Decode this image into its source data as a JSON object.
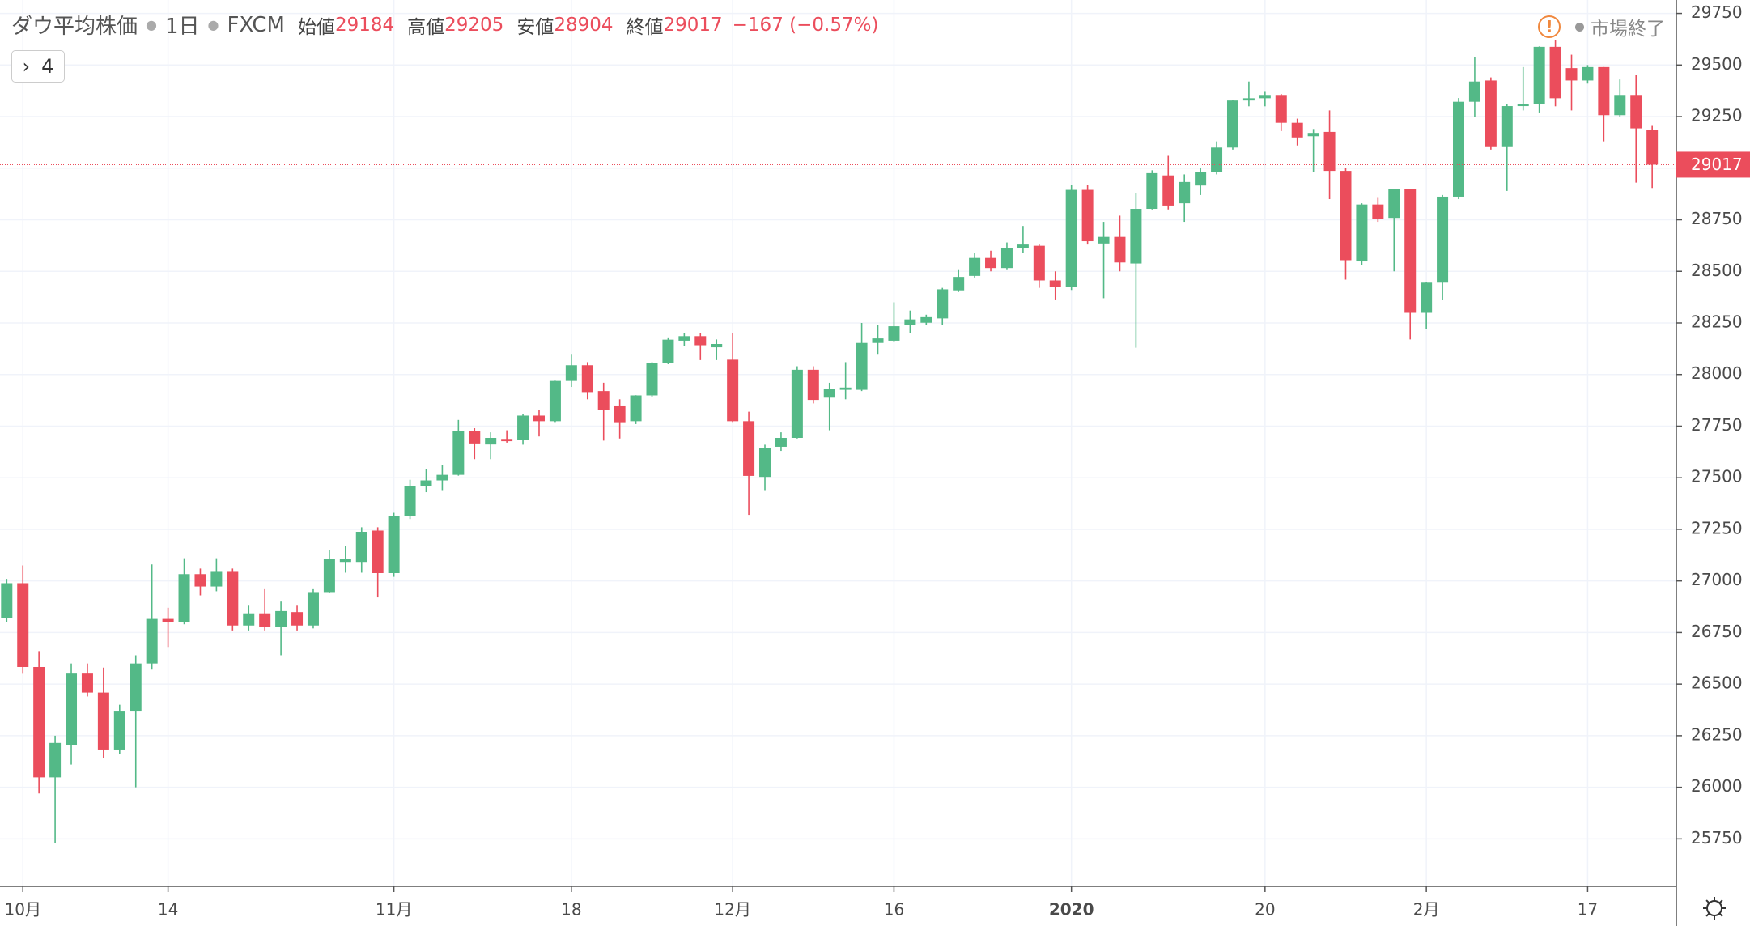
{
  "header": {
    "title": "ダウ平均株価",
    "interval": "1日",
    "source": "FXCM",
    "open_label": "始値",
    "high_label": "高値",
    "low_label": "安値",
    "close_label": "終値",
    "change": "−167 (−0.57%)",
    "collapse_count": "4",
    "market_status": "市場終了"
  },
  "chart_data": {
    "type": "candlestick",
    "up_color": "#53b987",
    "down_color": "#eb4d5c",
    "grid": true,
    "ylim": [
      25520,
      29815
    ],
    "yticks": [
      25750,
      26000,
      26250,
      26500,
      26750,
      27000,
      27250,
      27500,
      27750,
      28000,
      28250,
      28500,
      28750,
      29000,
      29250,
      29500,
      29750
    ],
    "categories": [
      null,
      "10月",
      null,
      null,
      null,
      null,
      null,
      null,
      null,
      null,
      "14",
      null,
      null,
      null,
      null,
      null,
      null,
      null,
      null,
      null,
      null,
      null,
      null,
      null,
      "11月",
      null,
      null,
      null,
      null,
      null,
      null,
      null,
      null,
      null,
      null,
      "18",
      null,
      null,
      null,
      null,
      null,
      null,
      null,
      null,
      null,
      "12月",
      null,
      null,
      null,
      null,
      null,
      null,
      null,
      null,
      null,
      "16",
      null,
      null,
      null,
      null,
      null,
      null,
      null,
      null,
      null,
      null,
      "2020",
      null,
      null,
      null,
      null,
      null,
      null,
      null,
      null,
      null,
      null,
      null,
      "20",
      null,
      null,
      null,
      null,
      null,
      null,
      null,
      null,
      null,
      "2月",
      null,
      null,
      null,
      null,
      null,
      null,
      null,
      null,
      null,
      "17",
      null,
      null,
      null,
      null
    ],
    "open": [
      26822,
      26989,
      26583,
      26048,
      26205,
      26551,
      26459,
      26183,
      26367,
      26600,
      26816,
      26800,
      27033,
      26973,
      27044,
      26784,
      26843,
      26778,
      26849,
      26784,
      26946,
      27092,
      27092,
      27244,
      27038,
      27314,
      27460,
      27487,
      27514,
      27726,
      27661,
      27688,
      27682,
      27801,
      27774,
      27969,
      28045,
      27920,
      27850,
      27774,
      27899,
      28056,
      28164,
      28186,
      28132,
      28072,
      27774,
      27504,
      27650,
      27693,
      28023,
      27888,
      27926,
      27926,
      28153,
      28164,
      28240,
      28251,
      28272,
      28408,
      28478,
      28565,
      28516,
      28613,
      28624,
      28456,
      28424,
      28895,
      28635,
      28667,
      28538,
      28803,
      28965,
      28830,
      28916,
      28981,
      29100,
      29328,
      29339,
      29355,
      29220,
      29155,
      29176,
      28987,
      28548,
      28824,
      28759,
      28900,
      28299,
      28445,
      28862,
      29322,
      29425,
      29106,
      29301,
      29312,
      29588,
      29485,
      29425,
      29490,
      29257,
      29355,
      29184
    ],
    "high": [
      27010,
      27075,
      26660,
      26250,
      26600,
      26600,
      26580,
      26400,
      26640,
      27080,
      26870,
      27110,
      27060,
      27110,
      27060,
      26880,
      26960,
      26900,
      26880,
      26960,
      27150,
      27170,
      27260,
      27260,
      27330,
      27490,
      27540,
      27560,
      27780,
      27740,
      27720,
      27730,
      27810,
      27830,
      27970,
      28100,
      28060,
      27960,
      27880,
      27900,
      28060,
      28180,
      28200,
      28200,
      28170,
      28200,
      27820,
      27660,
      27720,
      28040,
      28040,
      27960,
      28060,
      28250,
      28240,
      28350,
      28310,
      28290,
      28420,
      28510,
      28590,
      28600,
      28640,
      28720,
      28630,
      28500,
      28920,
      28920,
      28740,
      28770,
      28880,
      28990,
      29060,
      28970,
      29000,
      29130,
      29330,
      29420,
      29370,
      29360,
      29240,
      29190,
      29280,
      29000,
      28830,
      28860,
      28900,
      28900,
      28450,
      28870,
      29340,
      29540,
      29440,
      29310,
      29490,
      29590,
      29620,
      29550,
      29500,
      29490,
      29430,
      29450,
      29205
    ],
    "low": [
      26800,
      26550,
      25970,
      25730,
      26110,
      26440,
      26140,
      26160,
      26000,
      26570,
      26680,
      26790,
      26930,
      26950,
      26760,
      26760,
      26760,
      26640,
      26760,
      26770,
      26940,
      27040,
      27040,
      26920,
      27020,
      27300,
      27430,
      27440,
      27510,
      27590,
      27590,
      27670,
      27660,
      27700,
      27770,
      27940,
      27880,
      27680,
      27690,
      27760,
      27890,
      28050,
      28140,
      28070,
      28070,
      27770,
      27320,
      27440,
      27630,
      27690,
      27860,
      27730,
      27880,
      27920,
      28100,
      28160,
      28200,
      28240,
      28240,
      28400,
      28470,
      28500,
      28510,
      28590,
      28420,
      28360,
      28410,
      28630,
      28370,
      28500,
      28130,
      28800,
      28800,
      28740,
      28870,
      28970,
      29090,
      29300,
      29300,
      29180,
      29110,
      28980,
      28850,
      28460,
      28530,
      28740,
      28500,
      28170,
      28220,
      28360,
      28850,
      29250,
      29090,
      28890,
      29280,
      29270,
      29300,
      29280,
      29410,
      29130,
      29250,
      28930,
      28904
    ],
    "close": [
      26989,
      26583,
      26048,
      26215,
      26551,
      26459,
      26183,
      26367,
      26600,
      26816,
      26800,
      27033,
      26973,
      27044,
      26784,
      26843,
      26778,
      26854,
      26784,
      26946,
      27108,
      27108,
      27238,
      27038,
      27314,
      27460,
      27487,
      27514,
      27726,
      27666,
      27693,
      27677,
      27801,
      27774,
      27969,
      28045,
      27915,
      27828,
      27769,
      27899,
      28056,
      28169,
      28186,
      28142,
      28148,
      27774,
      27509,
      27644,
      27693,
      28023,
      27877,
      27931,
      27937,
      28153,
      28175,
      28234,
      28267,
      28278,
      28413,
      28473,
      28565,
      28516,
      28613,
      28630,
      28456,
      28424,
      28895,
      28646,
      28667,
      28543,
      28803,
      28976,
      28819,
      28933,
      28981,
      29100,
      29328,
      29339,
      29355,
      29220,
      29149,
      29171,
      28987,
      28554,
      28824,
      28754,
      28900,
      28299,
      28445,
      28862,
      29322,
      29420,
      29106,
      29301,
      29312,
      29588,
      29339,
      29425,
      29490,
      29257,
      29355,
      29193,
      29017
    ]
  }
}
